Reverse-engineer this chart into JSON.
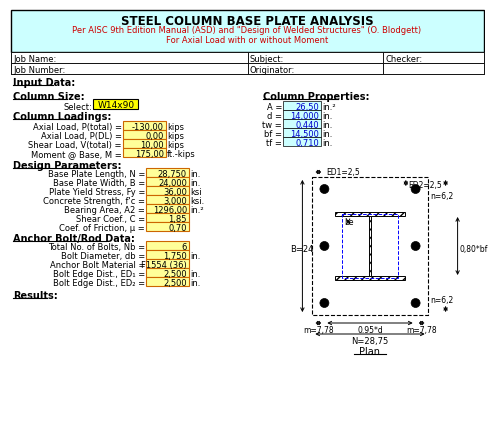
{
  "title": "STEEL COLUMN BASE PLATE ANALYSIS",
  "subtitle1": "Per AISC 9th Edition Manual (ASD) and \"Design of Welded Structures\" (O. Blodgett)",
  "subtitle2": "For Axial Load with or without Moment",
  "header_bg": "#ccffff",
  "title_color": "#000000",
  "subtitle_color": "#cc0000",
  "col_size": "W14x90",
  "col_props": {
    "A": "26,50",
    "d": "14,000",
    "tw": "0,440",
    "bf": "14,500",
    "tf": "0,710"
  },
  "col_units": {
    "A": "in.^2",
    "d": "in.",
    "tw": "in.",
    "bf": "in.",
    "tf": "in."
  },
  "loadings": {
    "P_total": "-130,00",
    "P_dl": "0,00",
    "V_total": "10,00",
    "M_base": "175,00"
  },
  "load_units": {
    "P_total": "kips",
    "P_dl": "kips",
    "V_total": "kips",
    "M_base": "ft.-kips"
  },
  "design": {
    "N": "28,750",
    "B": "24,000",
    "Fy": "36,00",
    "fc": "3,000",
    "A2": "1296,00",
    "C": "1,85",
    "mu": "0,70"
  },
  "design_units": {
    "N": "in.",
    "B": "in.",
    "Fy": "ksi",
    "fc": "ksi.",
    "A2": "in.^2",
    "C": "",
    "mu": ""
  },
  "bolt": {
    "Nb": "6",
    "db": "1,750",
    "material": "F1554 (36)",
    "ED1": "2,500",
    "ED2": "2,500"
  },
  "bolt_units": {
    "Nb": "",
    "db": "in.",
    "material": "",
    "ED1": "in.",
    "ED2": "in."
  },
  "diagram": {
    "B": 24.0,
    "N": 28.75,
    "ED1": 2.5,
    "ED2": 2.5,
    "n_right1": "n=6,2",
    "n_right2": "n=6,2",
    "ED2_label": "ED2=2,5",
    "ED1_label": "ED1=2,5",
    "be_label": "be",
    "m_left": "m=7,78",
    "m_right": "m=7,78",
    "center_label": "0.95*d",
    "bf_label": "0,80*bf",
    "B_label": "B=24",
    "N_label": "N=28,75",
    "plan_label": "Plan",
    "col_d": 14.0,
    "col_bf": 14.5,
    "col_tw": 0.44,
    "col_tf": 0.71
  }
}
